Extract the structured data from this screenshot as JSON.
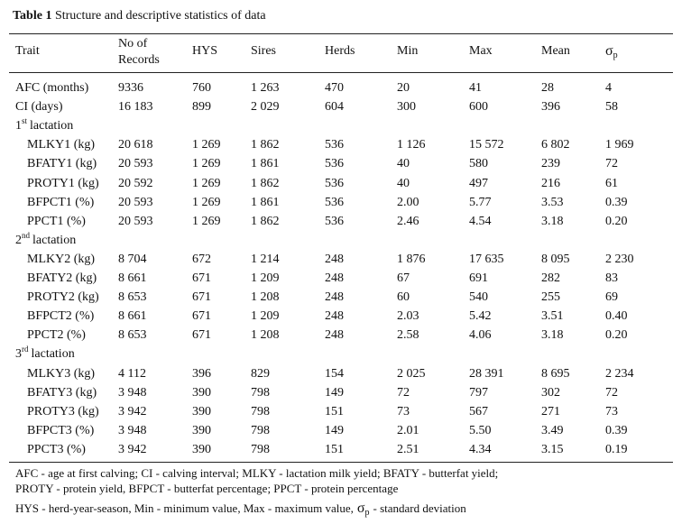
{
  "title": {
    "label": "Table 1",
    "text": "Structure and descriptive statistics of data"
  },
  "table": {
    "headers": [
      "Trait",
      "No of Records",
      "HYS",
      "Sires",
      "Herds",
      "Min",
      "Max",
      "Mean"
    ],
    "sd_header": {
      "symbol": "σ",
      "subscript": "p"
    },
    "rows": [
      [
        "AFC (months)",
        "9336",
        "760",
        "1 263",
        "470",
        "20",
        "41",
        "28",
        "4"
      ],
      [
        "CI (days)",
        "16 183",
        "899",
        "2 029",
        "604",
        "300",
        "600",
        "396",
        "58"
      ]
    ],
    "sections": [
      {
        "ordinal": "1",
        "suffix": "st",
        "label": "lactation",
        "rows": [
          [
            "MLKY1 (kg)",
            "20 618",
            "1 269",
            "1 862",
            "536",
            "1 126",
            "15 572",
            "6 802",
            "1 969"
          ],
          [
            "BFATY1 (kg)",
            "20 593",
            "1 269",
            "1 861",
            "536",
            "40",
            "580",
            "239",
            "72"
          ],
          [
            "PROTY1 (kg)",
            "20 592",
            "1 269",
            "1 862",
            "536",
            "40",
            "497",
            "216",
            "61"
          ],
          [
            "BFPCT1 (%)",
            "20 593",
            "1 269",
            "1 861",
            "536",
            "2.00",
            "5.77",
            "3.53",
            "0.39"
          ],
          [
            "PPCT1 (%)",
            "20 593",
            "1 269",
            "1 862",
            "536",
            "2.46",
            "4.54",
            "3.18",
            "0.20"
          ]
        ]
      },
      {
        "ordinal": "2",
        "suffix": "nd",
        "label": "lactation",
        "rows": [
          [
            "MLKY2 (kg)",
            "8 704",
            "672",
            "1 214",
            "248",
            "1 876",
            "17 635",
            "8 095",
            "2 230"
          ],
          [
            "BFATY2 (kg)",
            "8 661",
            "671",
            "1 209",
            "248",
            "67",
            "691",
            "282",
            "83"
          ],
          [
            "PROTY2 (kg)",
            "8 653",
            "671",
            "1 208",
            "248",
            "60",
            "540",
            "255",
            "69"
          ],
          [
            "BFPCT2 (%)",
            "8 661",
            "671",
            "1 209",
            "248",
            "2.03",
            "5.42",
            "3.51",
            "0.40"
          ],
          [
            "PPCT2 (%)",
            "8 653",
            "671",
            "1 208",
            "248",
            "2.58",
            "4.06",
            "3.18",
            "0.20"
          ]
        ]
      },
      {
        "ordinal": "3",
        "suffix": "rd",
        "label": "lactation",
        "rows": [
          [
            "MLKY3 (kg)",
            "4 112",
            "396",
            "829",
            "154",
            "2 025",
            "28 391",
            "8 695",
            "2 234"
          ],
          [
            "BFATY3 (kg)",
            "3 948",
            "390",
            "798",
            "149",
            "72",
            "797",
            "302",
            "72"
          ],
          [
            "PROTY3 (kg)",
            "3 942",
            "390",
            "798",
            "151",
            "73",
            "567",
            "271",
            "73"
          ],
          [
            "BFPCT3 (%)",
            "3 948",
            "390",
            "798",
            "149",
            "2.01",
            "5.50",
            "3.49",
            "0.39"
          ],
          [
            "PPCT3 (%)",
            "3 942",
            "390",
            "798",
            "151",
            "2.51",
            "4.34",
            "3.15",
            "0.19"
          ]
        ]
      }
    ]
  },
  "notes": [
    "AFC - age at first calving; CI - calving interval; MLKY - lactation milk yield; BFATY - butterfat yield;",
    "PROTY - protein yield, BFPCT - butterfat percentage; PPCT - protein percentage"
  ],
  "sd_note": {
    "text": "HYS - herd-year-season, Min - minimum value, Max - maximum value,",
    "symbol": "σ",
    "subscript": "p",
    "tail": "- standard deviation"
  }
}
